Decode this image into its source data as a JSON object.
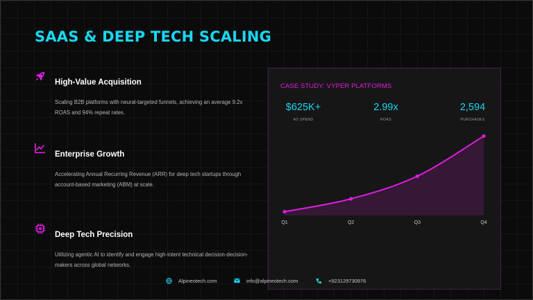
{
  "title": "SAAS & DEEP TECH SCALING",
  "features": [
    {
      "icon": "rocket-icon",
      "heading": "High-Value Acquisition",
      "description": "Scaling B2B platforms with neural-targeted funnels, achieving an average 9.2x ROAS and 94% repeat rates."
    },
    {
      "icon": "growth-chart-icon",
      "heading": "Enterprise Growth",
      "description": "Accelerating Annual Recurring Revenue (ARR) for deep tech startups through account-based marketing (ABM) at scale."
    },
    {
      "icon": "microchip-icon",
      "heading": "Deep Tech Precision",
      "description": "Utilizing agentic AI to identify and engage high-intent technical decision-decision-makers across global networks."
    }
  ],
  "case_study": {
    "title": "CASE STUDY: VYPER PLATFORMS",
    "stats": [
      {
        "value": "$625K+",
        "label": "AD SPEND"
      },
      {
        "value": "2.99x",
        "label": "ROAS"
      },
      {
        "value": "2,594",
        "label": "PURCHASES"
      }
    ]
  },
  "chart_data": {
    "type": "area",
    "categories": [
      "Q1",
      "Q2",
      "Q3",
      "Q4"
    ],
    "values": [
      5,
      22,
      52,
      105
    ],
    "ylim": [
      0,
      110
    ],
    "grid": false,
    "legend": "none",
    "color": "#e01ee0"
  },
  "footer": {
    "website": "Alpineotech.com",
    "email": "info@alpineotech.com",
    "phone": "+923129730976"
  },
  "colors": {
    "accent_cyan": "#19d7f0",
    "accent_magenta": "#e01ee0",
    "background": "#0b0b0b"
  }
}
